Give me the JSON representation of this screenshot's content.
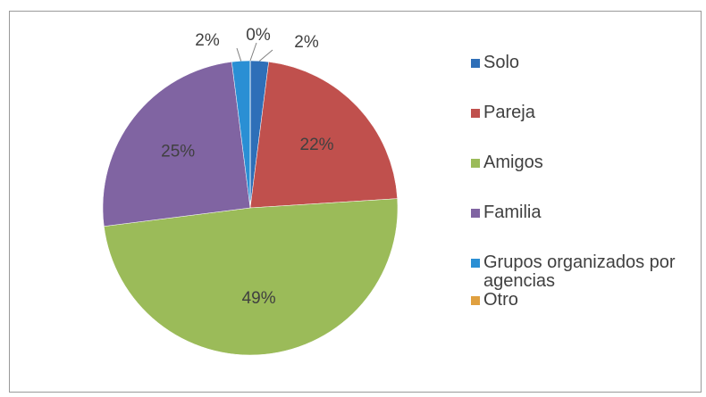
{
  "chart_data": {
    "type": "pie",
    "categories": [
      "Solo",
      "Pareja",
      "Amigos",
      "Familia",
      "Grupos organizados por agencias",
      "Otro"
    ],
    "values": [
      2,
      22,
      49,
      25,
      2,
      0
    ],
    "value_labels": [
      "2%",
      "22%",
      "49%",
      "25%",
      "2%",
      "0%"
    ],
    "colors": [
      "#2e6fb8",
      "#c0504d",
      "#9bbb59",
      "#8064a2",
      "#2a8fd4",
      "#e0a040"
    ],
    "legend": "right"
  }
}
